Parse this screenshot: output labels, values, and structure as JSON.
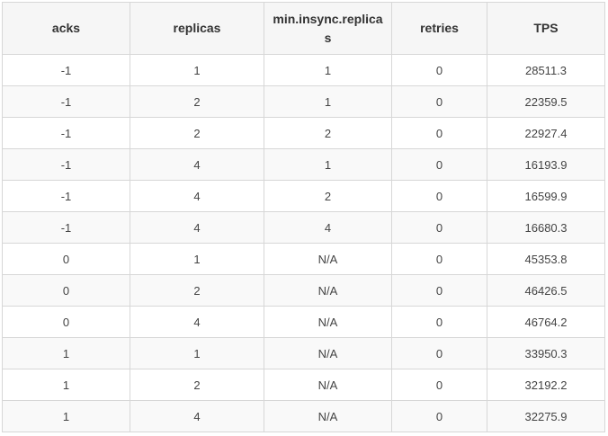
{
  "table": {
    "headers": [
      "acks",
      "replicas",
      "min.insync.replicas",
      "retries",
      "TPS"
    ],
    "rows": [
      [
        "-1",
        "1",
        "1",
        "0",
        "28511.3"
      ],
      [
        "-1",
        "2",
        "1",
        "0",
        "22359.5"
      ],
      [
        "-1",
        "2",
        "2",
        "0",
        "22927.4"
      ],
      [
        "-1",
        "4",
        "1",
        "0",
        "16193.9"
      ],
      [
        "-1",
        "4",
        "2",
        "0",
        "16599.9"
      ],
      [
        "-1",
        "4",
        "4",
        "0",
        "16680.3"
      ],
      [
        "0",
        "1",
        "N/A",
        "0",
        "45353.8"
      ],
      [
        "0",
        "2",
        "N/A",
        "0",
        "46426.5"
      ],
      [
        "0",
        "4",
        "N/A",
        "0",
        "46764.2"
      ],
      [
        "1",
        "1",
        "N/A",
        "0",
        "33950.3"
      ],
      [
        "1",
        "2",
        "N/A",
        "0",
        "32192.2"
      ],
      [
        "1",
        "4",
        "N/A",
        "0",
        "32275.9"
      ]
    ]
  }
}
